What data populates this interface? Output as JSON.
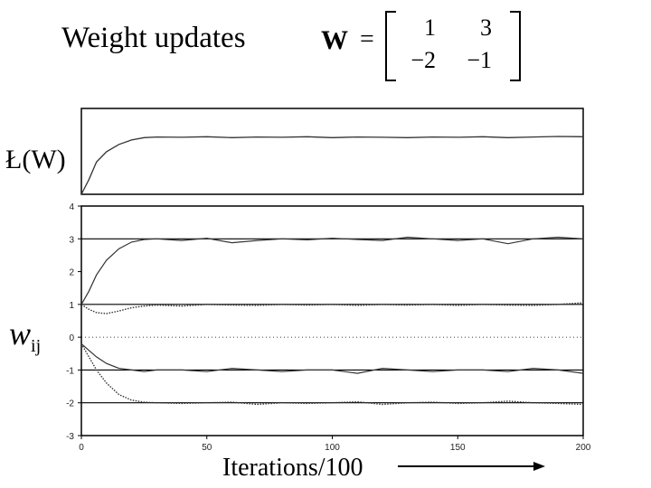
{
  "header": {
    "title": "Weight updates",
    "matrix_symbol": "W",
    "equals": "=",
    "matrix": [
      [
        "1",
        "3"
      ],
      [
        "−2",
        "−1"
      ]
    ]
  },
  "chart_data": [
    {
      "type": "line",
      "ylabel": "Ł(W)",
      "xlim": [
        0,
        200
      ],
      "series": [
        {
          "x": [
            0,
            3,
            6,
            10,
            15,
            20,
            25,
            30,
            40,
            50,
            60,
            70,
            80,
            90,
            100,
            110,
            120,
            130,
            140,
            150,
            160,
            170,
            180,
            190,
            200
          ],
          "values": [
            -1.0,
            -0.5,
            0.1,
            0.45,
            0.7,
            0.85,
            0.93,
            0.95,
            0.94,
            0.96,
            0.93,
            0.95,
            0.94,
            0.96,
            0.93,
            0.95,
            0.94,
            0.93,
            0.95,
            0.94,
            0.96,
            0.93,
            0.95,
            0.97,
            0.96
          ]
        }
      ]
    },
    {
      "type": "line",
      "xlabel": "Iterations/100",
      "xlim": [
        0,
        200
      ],
      "ylim": [
        -3,
        4
      ],
      "yticks": [
        "4",
        "3",
        "2",
        "1",
        "0",
        "-1",
        "-2",
        "-3"
      ],
      "xticks": [
        "0",
        "50",
        "100",
        "150",
        "200"
      ],
      "reference_lines": [
        3,
        1,
        0,
        -1,
        -2
      ],
      "series": [
        {
          "style": "solid",
          "x": [
            0,
            3,
            6,
            10,
            15,
            20,
            25,
            30,
            40,
            50,
            60,
            70,
            80,
            90,
            100,
            110,
            120,
            130,
            140,
            150,
            160,
            170,
            180,
            190,
            200
          ],
          "values": [
            1.0,
            1.4,
            1.9,
            2.35,
            2.7,
            2.9,
            2.98,
            3.0,
            2.95,
            3.02,
            2.88,
            2.95,
            3.0,
            2.97,
            3.02,
            2.98,
            2.95,
            3.05,
            3.0,
            2.95,
            3.0,
            2.85,
            3.0,
            3.05,
            3.0
          ]
        },
        {
          "style": "dotted",
          "x": [
            0,
            3,
            6,
            10,
            15,
            20,
            25,
            30,
            40,
            50,
            60,
            70,
            80,
            90,
            100,
            110,
            120,
            130,
            140,
            150,
            160,
            170,
            180,
            190,
            200
          ],
          "values": [
            1.0,
            0.85,
            0.75,
            0.72,
            0.8,
            0.9,
            0.95,
            0.98,
            0.95,
            1.0,
            0.98,
            0.97,
            1.0,
            0.98,
            1.0,
            0.97,
            1.0,
            0.98,
            1.0,
            0.97,
            1.0,
            0.98,
            0.97,
            1.0,
            1.05
          ]
        },
        {
          "style": "solid",
          "x": [
            0,
            3,
            6,
            10,
            15,
            20,
            25,
            30,
            40,
            50,
            60,
            70,
            80,
            90,
            100,
            110,
            120,
            130,
            140,
            150,
            160,
            170,
            180,
            190,
            200
          ],
          "values": [
            -0.2,
            -0.4,
            -0.6,
            -0.8,
            -0.95,
            -1.0,
            -1.05,
            -1.0,
            -1.0,
            -1.05,
            -0.95,
            -1.0,
            -1.05,
            -1.0,
            -1.0,
            -1.1,
            -0.95,
            -1.0,
            -1.05,
            -1.0,
            -1.0,
            -1.05,
            -0.95,
            -1.0,
            -1.1
          ]
        },
        {
          "style": "dotted",
          "x": [
            0,
            3,
            6,
            10,
            15,
            20,
            25,
            30,
            40,
            50,
            60,
            70,
            80,
            90,
            100,
            110,
            120,
            130,
            140,
            150,
            160,
            170,
            180,
            190,
            200
          ],
          "values": [
            -0.2,
            -0.6,
            -1.0,
            -1.4,
            -1.75,
            -1.92,
            -1.98,
            -2.0,
            -2.02,
            -2.0,
            -1.98,
            -2.05,
            -2.0,
            -2.02,
            -2.0,
            -1.97,
            -2.05,
            -2.0,
            -1.98,
            -2.02,
            -2.0,
            -1.95,
            -2.0,
            -2.02,
            -2.05
          ]
        }
      ]
    }
  ]
}
